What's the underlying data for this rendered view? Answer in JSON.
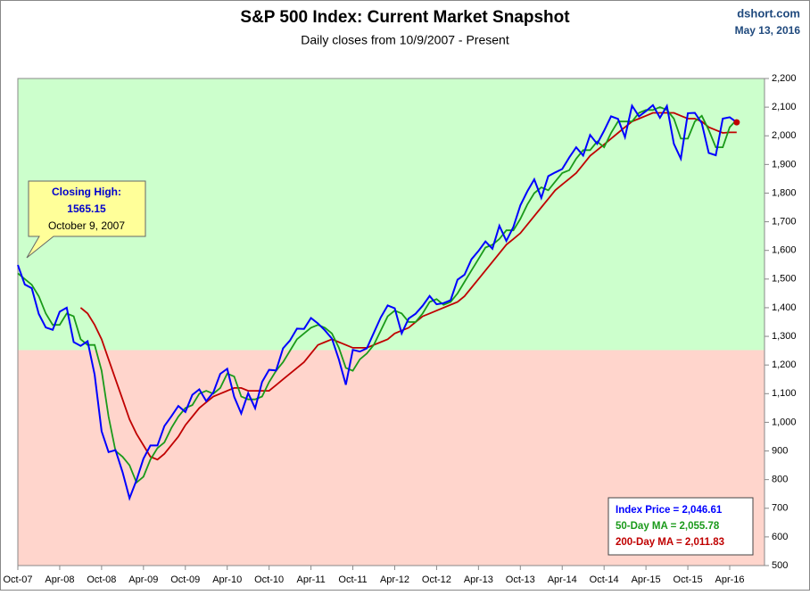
{
  "chart_data": {
    "type": "line",
    "title": "S&P 500 Index: Current Market Snapshot",
    "subtitle": "Daily closes from 10/9/2007 - Present",
    "source": "dshort.com",
    "date": "May 13, 2016",
    "categories": [
      "Oct-07",
      null,
      null,
      null,
      null,
      null,
      "Apr-08",
      null,
      null,
      null,
      null,
      null,
      "Oct-08",
      null,
      null,
      null,
      null,
      null,
      "Apr-09",
      null,
      null,
      null,
      null,
      null,
      "Oct-09",
      null,
      null,
      null,
      null,
      null,
      "Apr-10",
      null,
      null,
      null,
      null,
      null,
      "Oct-10",
      null,
      null,
      null,
      null,
      null,
      "Apr-11",
      null,
      null,
      null,
      null,
      null,
      "Oct-11",
      null,
      null,
      null,
      null,
      null,
      "Apr-12",
      null,
      null,
      null,
      null,
      null,
      "Oct-12",
      null,
      null,
      null,
      null,
      null,
      "Apr-13",
      null,
      null,
      null,
      null,
      null,
      "Oct-13",
      null,
      null,
      null,
      null,
      null,
      "Apr-14",
      null,
      null,
      null,
      null,
      null,
      "Oct-14",
      null,
      null,
      null,
      null,
      null,
      "Apr-15",
      null,
      null,
      null,
      null,
      null,
      "Oct-15",
      null,
      null,
      null,
      null,
      null,
      "Apr-16",
      null
    ],
    "series": [
      {
        "name": "Index Price",
        "color": "#0000ff",
        "values": [
          1549,
          1481,
          1468,
          1378,
          1331,
          1323,
          1386,
          1400,
          1280,
          1267,
          1283,
          1166,
          969,
          896,
          903,
          826,
          735,
          798,
          873,
          919,
          919,
          987,
          1021,
          1057,
          1036,
          1096,
          1115,
          1074,
          1104,
          1169,
          1187,
          1089,
          1031,
          1102,
          1049,
          1141,
          1183,
          1181,
          1258,
          1286,
          1327,
          1326,
          1364,
          1345,
          1321,
          1292,
          1219,
          1131,
          1253,
          1247,
          1258,
          1312,
          1366,
          1408,
          1398,
          1310,
          1362,
          1379,
          1407,
          1441,
          1412,
          1416,
          1426,
          1498,
          1515,
          1569,
          1598,
          1631,
          1606,
          1686,
          1633,
          1682,
          1757,
          1806,
          1848,
          1783,
          1859,
          1872,
          1884,
          1924,
          1960,
          1931,
          2003,
          1972,
          2018,
          2068,
          2059,
          1995,
          2105,
          2068,
          2086,
          2107,
          2063,
          2104,
          1972,
          1920,
          2079,
          2080,
          2044,
          1940,
          1932,
          2060,
          2065,
          2047
        ]
      },
      {
        "name": "50-Day MA",
        "color": "#1a9a1a",
        "values": [
          1520,
          1500,
          1480,
          1440,
          1380,
          1340,
          1340,
          1380,
          1370,
          1290,
          1270,
          1270,
          1180,
          1020,
          900,
          880,
          850,
          790,
          810,
          870,
          910,
          930,
          980,
          1020,
          1050,
          1060,
          1100,
          1110,
          1100,
          1120,
          1170,
          1160,
          1090,
          1080,
          1080,
          1090,
          1140,
          1180,
          1210,
          1250,
          1290,
          1310,
          1330,
          1340,
          1330,
          1310,
          1260,
          1190,
          1180,
          1220,
          1240,
          1270,
          1320,
          1370,
          1390,
          1380,
          1350,
          1350,
          1380,
          1420,
          1430,
          1410,
          1420,
          1450,
          1490,
          1530,
          1570,
          1610,
          1620,
          1640,
          1670,
          1670,
          1710,
          1760,
          1800,
          1820,
          1810,
          1840,
          1870,
          1880,
          1920,
          1950,
          1950,
          1980,
          1960,
          2010,
          2050,
          2050,
          2050,
          2080,
          2090,
          2090,
          2100,
          2090,
          2060,
          1990,
          1990,
          2050,
          2070,
          2020,
          1960,
          1960,
          2030,
          2056
        ]
      },
      {
        "name": "200-Day MA",
        "color": "#c00000",
        "values": [
          null,
          null,
          null,
          null,
          null,
          null,
          null,
          null,
          null,
          1400,
          1380,
          1340,
          1290,
          1220,
          1150,
          1080,
          1010,
          960,
          920,
          880,
          870,
          890,
          920,
          950,
          990,
          1020,
          1050,
          1070,
          1090,
          1100,
          1110,
          1120,
          1120,
          1110,
          1110,
          1110,
          1110,
          1130,
          1150,
          1170,
          1190,
          1210,
          1240,
          1270,
          1280,
          1290,
          1280,
          1270,
          1260,
          1260,
          1260,
          1270,
          1280,
          1290,
          1310,
          1320,
          1330,
          1350,
          1370,
          1380,
          1390,
          1400,
          1410,
          1420,
          1440,
          1470,
          1500,
          1530,
          1560,
          1590,
          1620,
          1640,
          1660,
          1690,
          1720,
          1750,
          1780,
          1810,
          1830,
          1850,
          1870,
          1900,
          1930,
          1950,
          1970,
          1990,
          2010,
          2030,
          2050,
          2060,
          2070,
          2080,
          2080,
          2080,
          2080,
          2070,
          2060,
          2060,
          2050,
          2030,
          2020,
          2010,
          2012,
          2012
        ]
      }
    ],
    "ylim": [
      500,
      2200
    ],
    "yticks": [
      500,
      600,
      700,
      800,
      900,
      {
        "value": 1000,
        "label": "1,000"
      },
      {
        "value": 1100,
        "label": "1,100"
      },
      {
        "value": 1200,
        "label": "1,200"
      },
      {
        "value": 1300,
        "label": "1,300"
      },
      {
        "value": 1400,
        "label": "1,400"
      },
      {
        "value": 1500,
        "label": "1,500"
      },
      {
        "value": 1600,
        "label": "1,600"
      },
      {
        "value": 1700,
        "label": "1,700"
      },
      {
        "value": 1800,
        "label": "1,800"
      },
      {
        "value": 1900,
        "label": "1,900"
      },
      {
        "value": 2000,
        "label": "2,000"
      },
      {
        "value": 2100,
        "label": "2,100"
      },
      {
        "value": 2200,
        "label": "2,200"
      }
    ],
    "regions": [
      {
        "from": 1252,
        "to": 2200,
        "color": "#ccffcc"
      },
      {
        "from": 500,
        "to": 1252,
        "color": "#ffd5cc"
      }
    ],
    "callout": [
      "Closing High:",
      "1565.15",
      "October 9, 2007"
    ],
    "readout": [
      "Index Price =  2,046.61",
      "50-Day MA =  2,055.78",
      "200-Day MA =  2,011.83"
    ]
  }
}
